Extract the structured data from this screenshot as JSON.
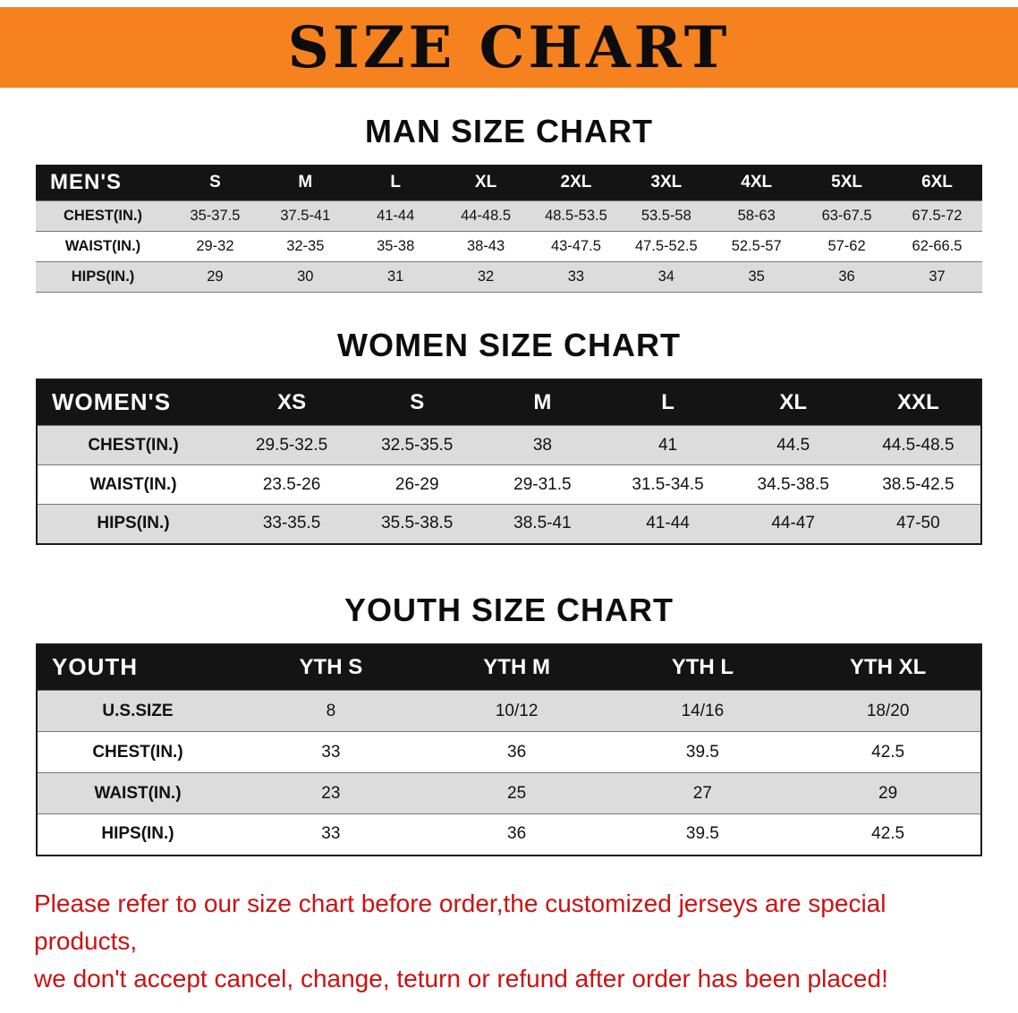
{
  "banner": {
    "title": "SIZE CHART"
  },
  "colors": {
    "banner_orange": "#F5821F",
    "table_header_black": "#141414",
    "row_gray": "#DCDCDC",
    "notice_red": "#CC1111"
  },
  "sections": [
    {
      "heading": "MAN SIZE CHART",
      "table": {
        "header_label": "MEN'S",
        "columns": [
          "S",
          "M",
          "L",
          "XL",
          "2XL",
          "3XL",
          "4XL",
          "5XL",
          "6XL"
        ],
        "rows": [
          {
            "label": "CHEST(IN.)",
            "values": [
              "35-37.5",
              "37.5-41",
              "41-44",
              "44-48.5",
              "48.5-53.5",
              "53.5-58",
              "58-63",
              "63-67.5",
              "67.5-72"
            ]
          },
          {
            "label": "WAIST(IN.)",
            "values": [
              "29-32",
              "32-35",
              "35-38",
              "38-43",
              "43-47.5",
              "47.5-52.5",
              "52.5-57",
              "57-62",
              "62-66.5"
            ]
          },
          {
            "label": "HIPS(IN.)",
            "values": [
              "29",
              "30",
              "31",
              "32",
              "33",
              "34",
              "35",
              "36",
              "37"
            ]
          }
        ]
      }
    },
    {
      "heading": "WOMEN SIZE CHART",
      "table": {
        "header_label": "WOMEN'S",
        "columns": [
          "XS",
          "S",
          "M",
          "L",
          "XL",
          "XXL"
        ],
        "rows": [
          {
            "label": "CHEST(IN.)",
            "values": [
              "29.5-32.5",
              "32.5-35.5",
              "38",
              "41",
              "44.5",
              "44.5-48.5"
            ]
          },
          {
            "label": "WAIST(IN.)",
            "values": [
              "23.5-26",
              "26-29",
              "29-31.5",
              "31.5-34.5",
              "34.5-38.5",
              "38.5-42.5"
            ]
          },
          {
            "label": "HIPS(IN.)",
            "values": [
              "33-35.5",
              "35.5-38.5",
              "38.5-41",
              "41-44",
              "44-47",
              "47-50"
            ]
          }
        ]
      }
    },
    {
      "heading": "YOUTH SIZE CHART",
      "table": {
        "header_label": "YOUTH",
        "columns": [
          "YTH S",
          "YTH M",
          "YTH L",
          "YTH XL"
        ],
        "rows": [
          {
            "label": "U.S.SIZE",
            "values": [
              "8",
              "10/12",
              "14/16",
              "18/20"
            ]
          },
          {
            "label": "CHEST(IN.)",
            "values": [
              "33",
              "36",
              "39.5",
              "42.5"
            ]
          },
          {
            "label": "WAIST(IN.)",
            "values": [
              "23",
              "25",
              "27",
              "29"
            ]
          },
          {
            "label": "HIPS(IN.)",
            "values": [
              "33",
              "36",
              "39.5",
              "42.5"
            ]
          }
        ]
      }
    }
  ],
  "footer": {
    "line1": "Please refer to our size chart before order,the customized jerseys are special products,",
    "line2": "we don't accept cancel, change, teturn or refund after order has been placed!"
  }
}
